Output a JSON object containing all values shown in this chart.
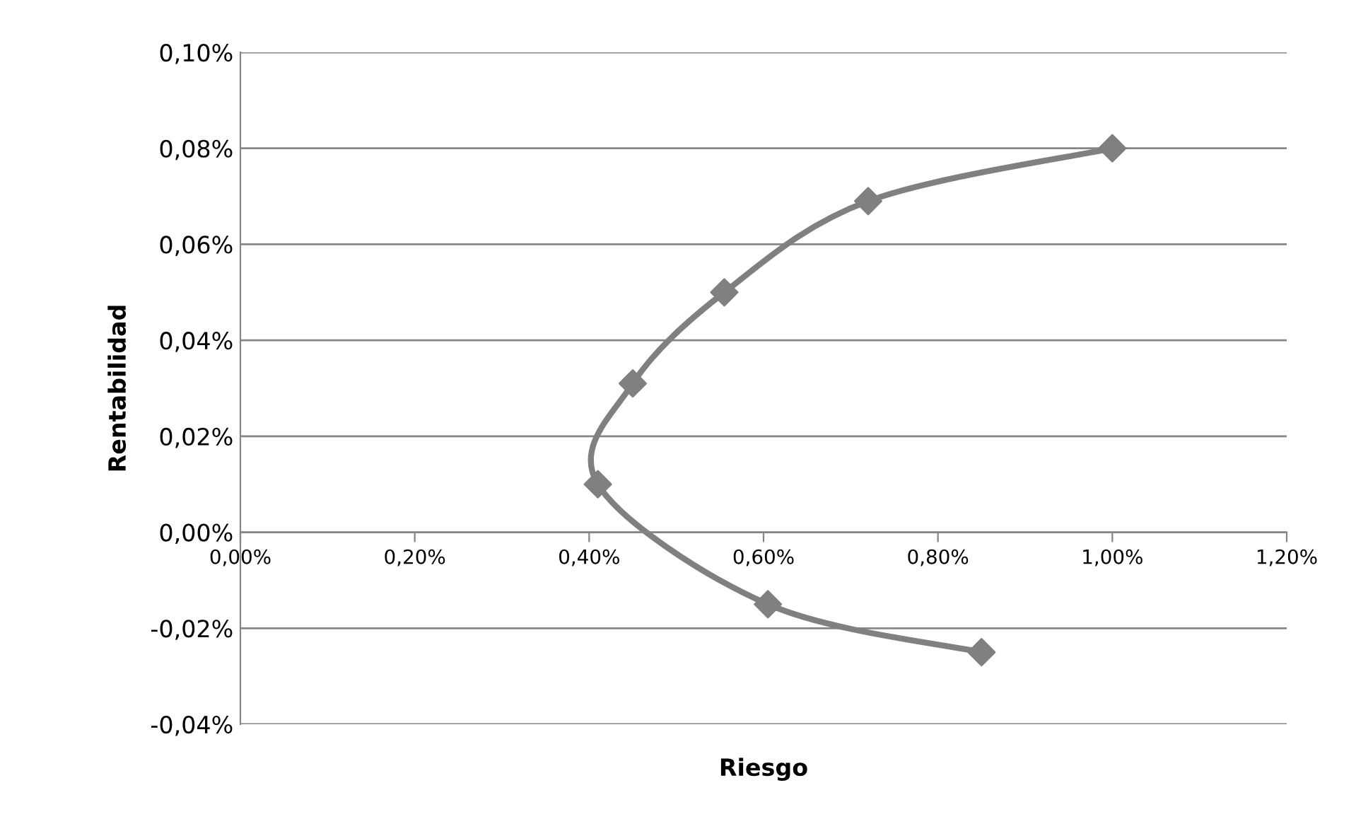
{
  "chart_data": {
    "type": "line",
    "xlabel": "Riesgo",
    "ylabel": "Rentabilidad",
    "x": [
      0.85,
      0.605,
      0.41,
      0.45,
      0.555,
      0.72,
      1.0
    ],
    "series": [
      {
        "color": "#808080",
        "values": [
          -0.025,
          -0.015,
          0.01,
          0.031,
          0.05,
          0.069,
          0.08
        ]
      }
    ],
    "xlim": [
      0,
      1.2
    ],
    "ylim": [
      -0.04,
      0.1
    ],
    "xticks": [
      {
        "value": 0,
        "label": "0,00%"
      },
      {
        "value": 0.2,
        "label": "0,20%"
      },
      {
        "value": 0.4,
        "label": "0,40%"
      },
      {
        "value": 0.6,
        "label": "0,60%"
      },
      {
        "value": 0.8,
        "label": "0,80%"
      },
      {
        "value": 1.0,
        "label": "1,00%"
      },
      {
        "value": 1.2,
        "label": "1,20%"
      }
    ],
    "yticks": [
      {
        "value": -0.04,
        "label": "-0,04%"
      },
      {
        "value": -0.02,
        "label": "-0,02%"
      },
      {
        "value": 0,
        "label": "0,00%"
      },
      {
        "value": 0.02,
        "label": "0,02%"
      },
      {
        "value": 0.04,
        "label": "0,04%"
      },
      {
        "value": 0.06,
        "label": "0,06%"
      },
      {
        "value": 0.08,
        "label": "0,08%"
      },
      {
        "value": 0.1,
        "label": "0,10%"
      }
    ],
    "grid": "y",
    "marker": "diamond",
    "line_style": "solid",
    "legend": false
  }
}
